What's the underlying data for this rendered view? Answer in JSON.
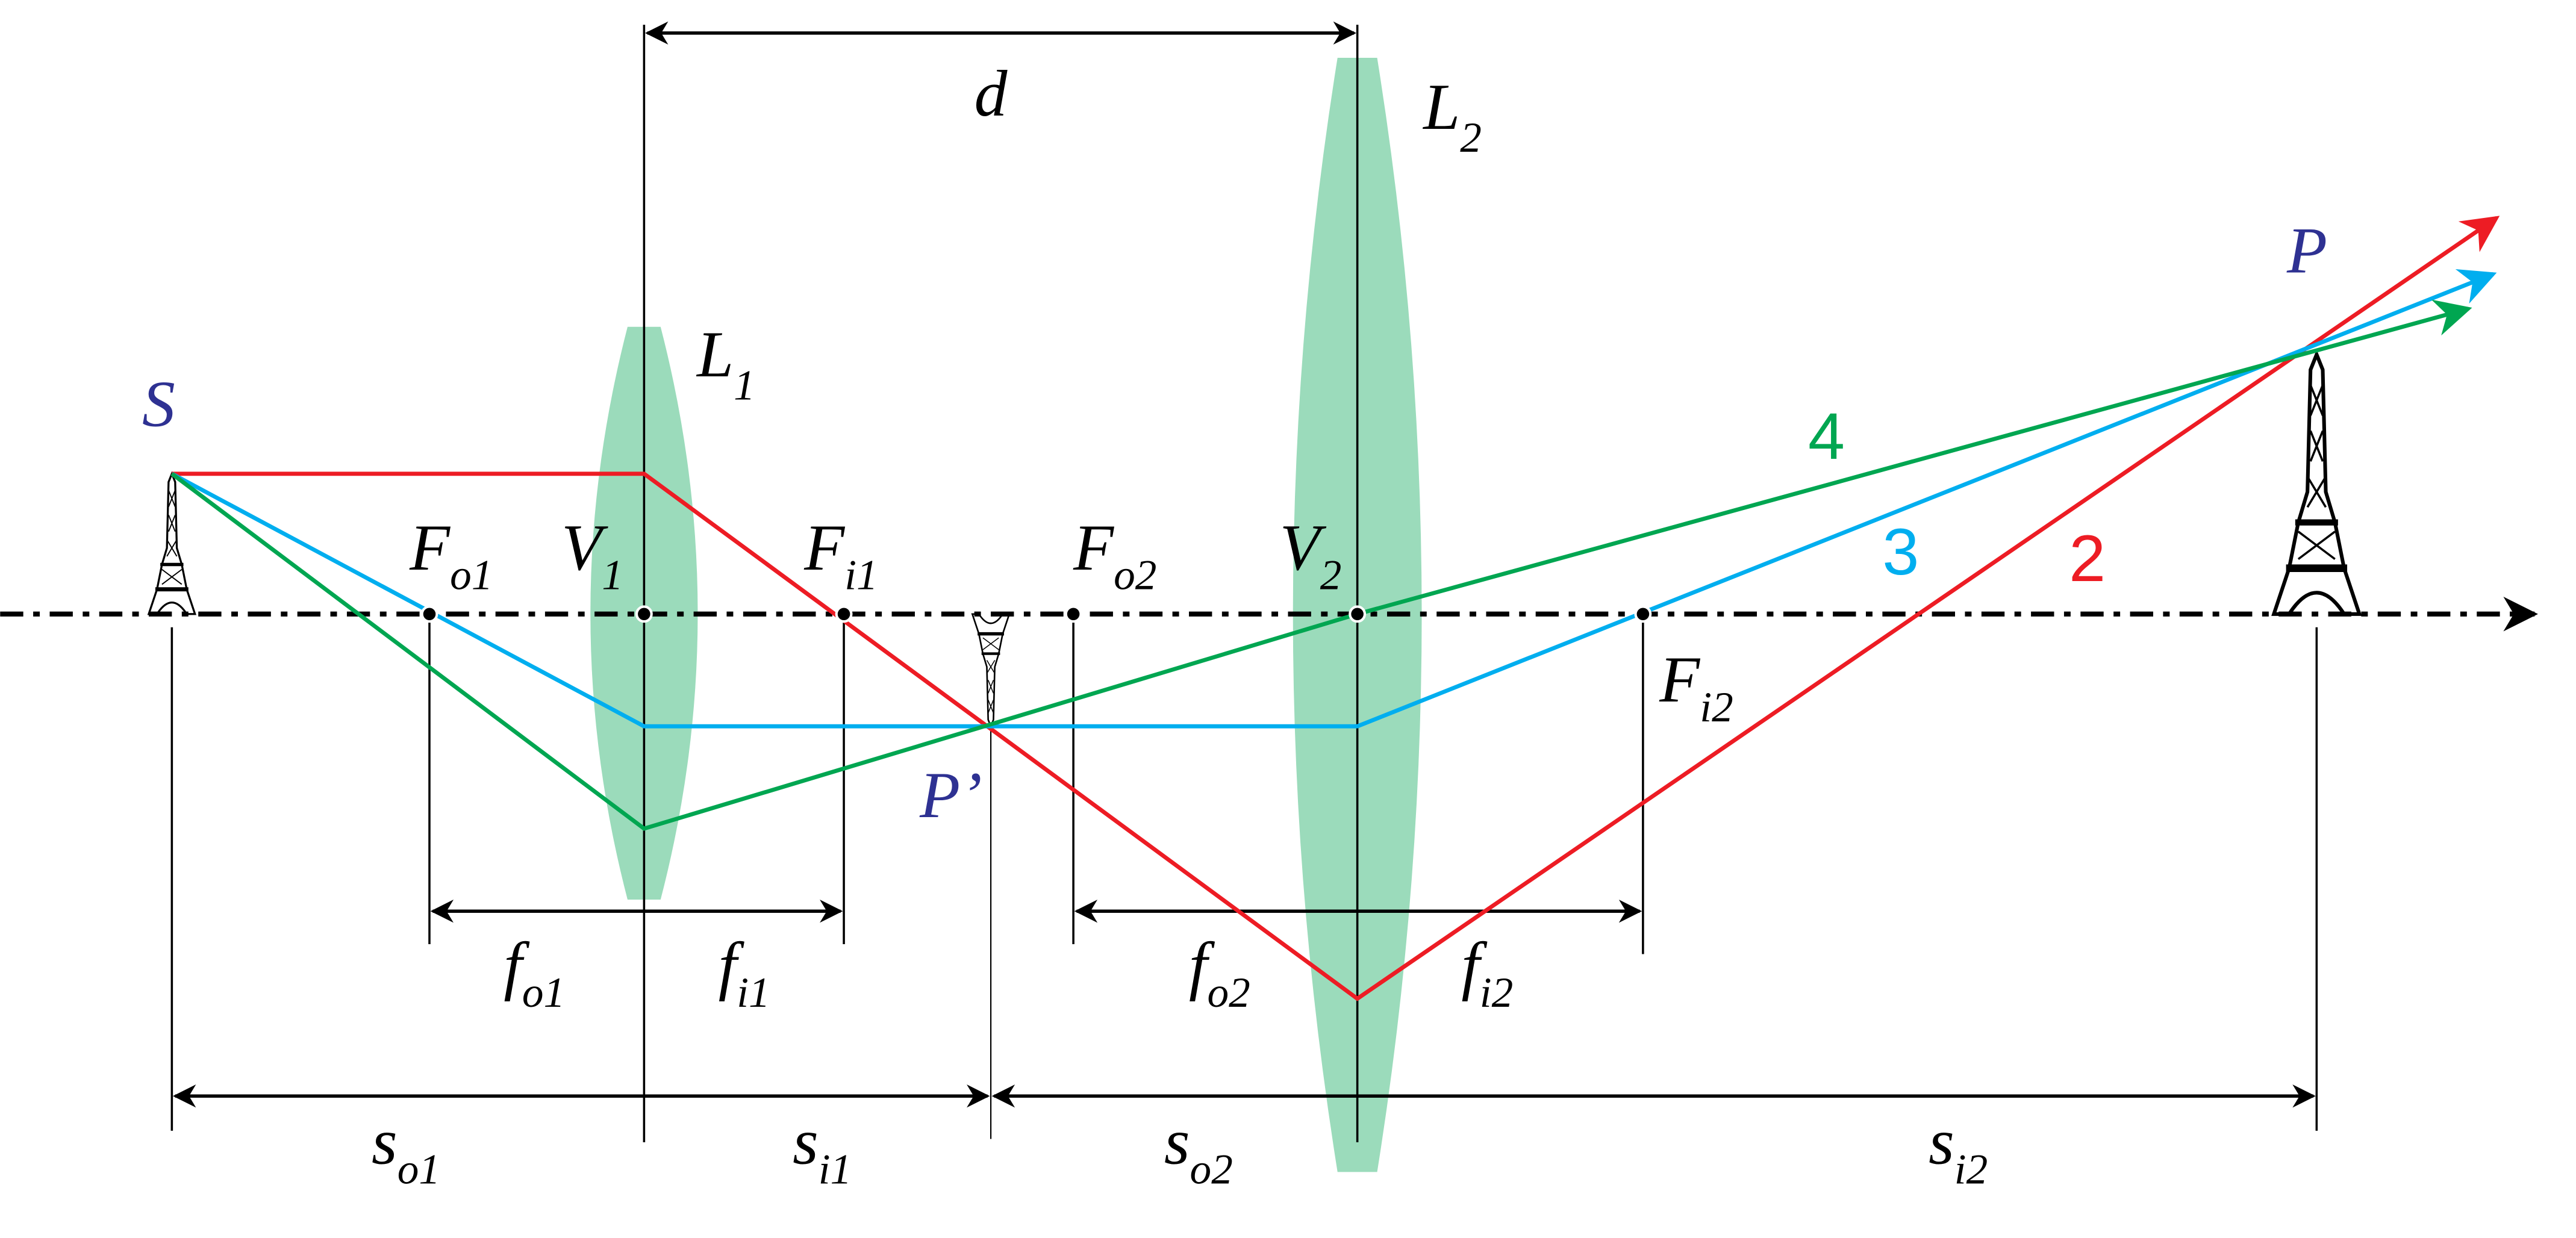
{
  "colors": {
    "ray2": "#ed1c24",
    "ray3": "#00aeef",
    "ray4": "#00a651",
    "lens": "#9bdbbb",
    "point_label": "#2e3192"
  },
  "labels": {
    "d": "d",
    "L1": {
      "main": "L",
      "sub": "1"
    },
    "L2": {
      "main": "L",
      "sub": "2"
    },
    "S": "S",
    "P": "P",
    "P_prime": "P’",
    "Fo1": {
      "main": "F",
      "sub": "o1"
    },
    "V1": {
      "main": "V",
      "sub": "1"
    },
    "Fi1": {
      "main": "F",
      "sub": "i1"
    },
    "Fo2": {
      "main": "F",
      "sub": "o2"
    },
    "V2": {
      "main": "V",
      "sub": "2"
    },
    "Fi2": {
      "main": "F",
      "sub": "i2"
    },
    "fo1": {
      "main": "f",
      "sub": "o1"
    },
    "fi1": {
      "main": "f",
      "sub": "i1"
    },
    "fo2": {
      "main": "f",
      "sub": "o2"
    },
    "fi2": {
      "main": "f",
      "sub": "i2"
    },
    "so1": {
      "main": "s",
      "sub": "o1"
    },
    "si1": {
      "main": "s",
      "sub": "i1"
    },
    "so2": {
      "main": "s",
      "sub": "o2"
    },
    "si2": {
      "main": "s",
      "sub": "i2"
    },
    "ray2": "2",
    "ray3": "3",
    "ray4": "4"
  },
  "icons": {
    "object": "eiffel-tower-icon",
    "image": "eiffel-tower-icon"
  }
}
